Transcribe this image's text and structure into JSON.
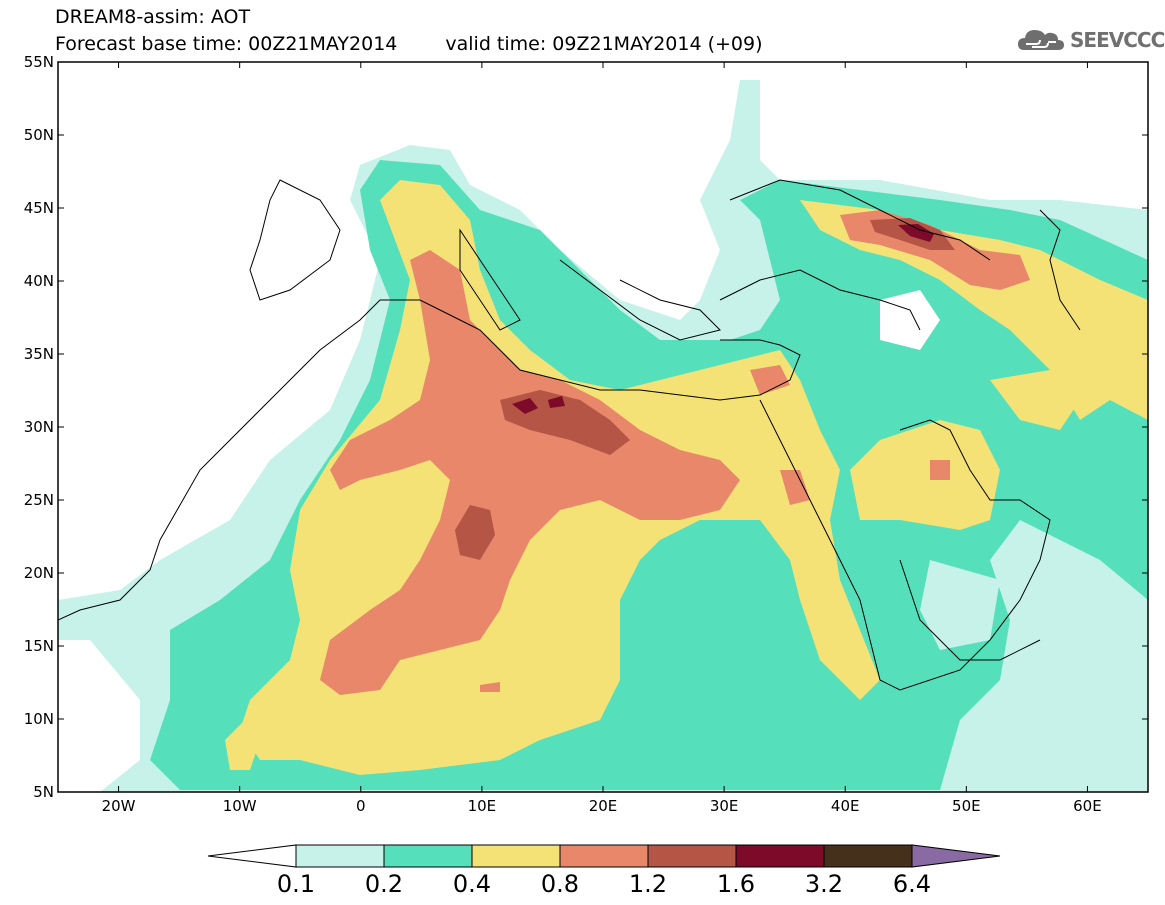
{
  "header": {
    "title": "DREAM8-assim: AOT",
    "base_time": "Forecast base time: 00Z21MAY2014",
    "valid_time": "valid time: 09Z21MAY2014 (+09)",
    "logo_text": "SEEVCCC"
  },
  "map": {
    "lon_range": [
      -25,
      65
    ],
    "lat_range": [
      5,
      55
    ],
    "lat_ticks": [
      {
        "value": 55,
        "label": "55N"
      },
      {
        "value": 50,
        "label": "50N"
      },
      {
        "value": 45,
        "label": "45N"
      },
      {
        "value": 40,
        "label": "40N"
      },
      {
        "value": 35,
        "label": "35N"
      },
      {
        "value": 30,
        "label": "30N"
      },
      {
        "value": 25,
        "label": "25N"
      },
      {
        "value": 20,
        "label": "20N"
      },
      {
        "value": 15,
        "label": "15N"
      },
      {
        "value": 10,
        "label": "10N"
      },
      {
        "value": 5,
        "label": "5N"
      }
    ],
    "lon_ticks": [
      {
        "value": -20,
        "label": "20W"
      },
      {
        "value": -10,
        "label": "10W"
      },
      {
        "value": 0,
        "label": "0"
      },
      {
        "value": 10,
        "label": "10E"
      },
      {
        "value": 20,
        "label": "20E"
      },
      {
        "value": 30,
        "label": "30E"
      },
      {
        "value": 40,
        "label": "40E"
      },
      {
        "value": 50,
        "label": "50E"
      },
      {
        "value": 60,
        "label": "60E"
      }
    ]
  },
  "colorbar": {
    "colors": [
      "#ffffff",
      "#c6f2ea",
      "#55e0bb",
      "#f4e277",
      "#e8876a",
      "#b45546",
      "#7d0a28",
      "#45301c",
      "#8a6aa2"
    ],
    "labels": [
      "0.1",
      "0.2",
      "0.4",
      "0.8",
      "1.2",
      "1.6",
      "3.2",
      "6.4"
    ]
  }
}
